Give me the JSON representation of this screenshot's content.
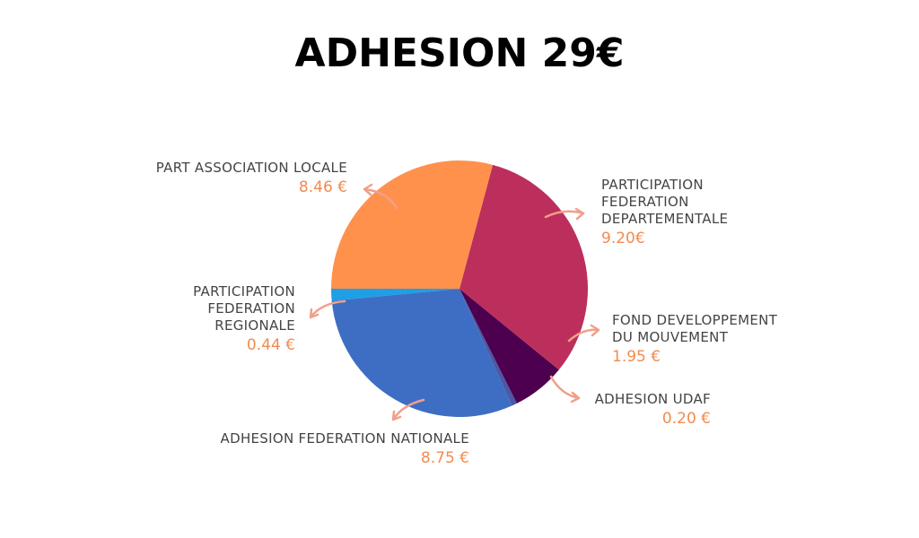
{
  "chart_data": {
    "type": "pie",
    "title": "ADHESION 29€",
    "categories": [
      "PART ASSOCIATION LOCALE",
      "PARTICIPATION\nFEDERATION\nDEPARTEMENTALE",
      "FOND DEVELOPPEMENT\nDU MOUVEMENT",
      "ADHESION UDAF",
      "ADHESION FEDERATION NATIONALE",
      "PARTICIPATION\nFEDERATION\nREGIONALE"
    ],
    "values": [
      8.46,
      9.2,
      1.95,
      0.2,
      8.75,
      0.44
    ],
    "value_labels": [
      "8.46 €",
      "9.20€",
      "1.95 €",
      "0.20 €",
      "8.75 €",
      "0.44 €"
    ],
    "colors": [
      "#ff914d",
      "#bc2f5c",
      "#4d0050",
      "#4b5aa6",
      "#3e6ec4",
      "#1e9fe6"
    ]
  }
}
